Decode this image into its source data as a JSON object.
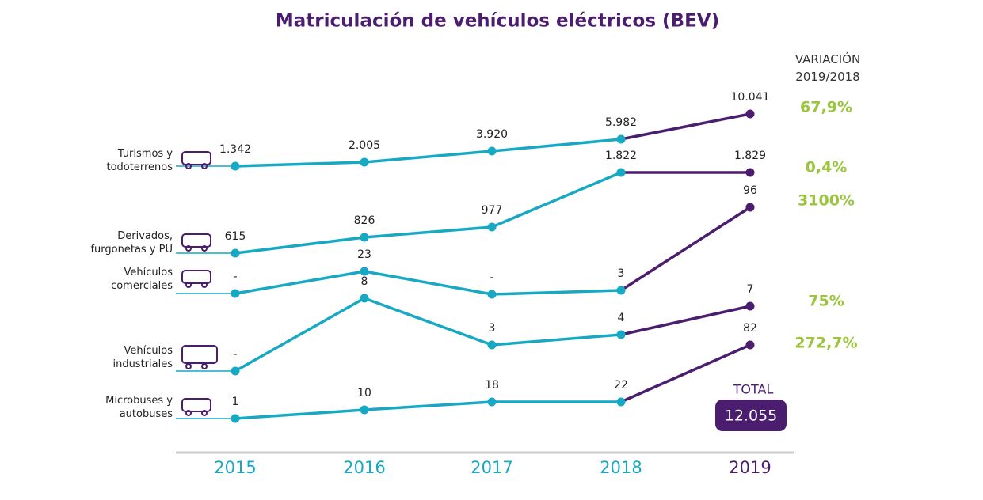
{
  "chart_data": {
    "type": "line",
    "title": "Matriculación de vehículos eléctricos (BEV)",
    "categories": [
      "2015",
      "2016",
      "2017",
      "2018",
      "2019"
    ],
    "color": "#17a8c3",
    "last_color": "#4b1d6e",
    "change_color": "#9bc53d",
    "change_header": "VARIACIÓN 2019/2018",
    "series": [
      {
        "name": "Turismos y todoterrenos",
        "values": [
          1342,
          2005,
          3920,
          5982,
          10041
        ],
        "value_labels": [
          "1.342",
          "2.005",
          "3.920",
          "5.982",
          "10.041"
        ],
        "change": 67.9,
        "change_label": "67,9%"
      },
      {
        "name": "Derivados, furgonetas y PU",
        "values": [
          615,
          826,
          977,
          1822,
          1829
        ],
        "value_labels": [
          "615",
          "826",
          "977",
          "1.822",
          "1.829"
        ],
        "change": 0.4,
        "change_label": "0,4%"
      },
      {
        "name": "Vehículos comerciales",
        "values": [
          0,
          23,
          0,
          3,
          96
        ],
        "value_labels": [
          "-",
          "23",
          "-",
          "3",
          "96"
        ],
        "change": 3100,
        "change_label": "3100%"
      },
      {
        "name": "Vehículos industriales",
        "values": [
          0,
          8,
          3,
          4,
          7
        ],
        "value_labels": [
          "-",
          "8",
          "3",
          "4",
          "7"
        ],
        "change": 75,
        "change_label": "75%"
      },
      {
        "name": "Microbuses y autobuses",
        "values": [
          1,
          10,
          18,
          22,
          82
        ],
        "value_labels": [
          "1",
          "10",
          "18",
          "22",
          "82"
        ],
        "change": 272.7,
        "change_label": "272,7%"
      }
    ],
    "total_title": "TOTAL",
    "total": 12055,
    "total_label": "12.055"
  }
}
